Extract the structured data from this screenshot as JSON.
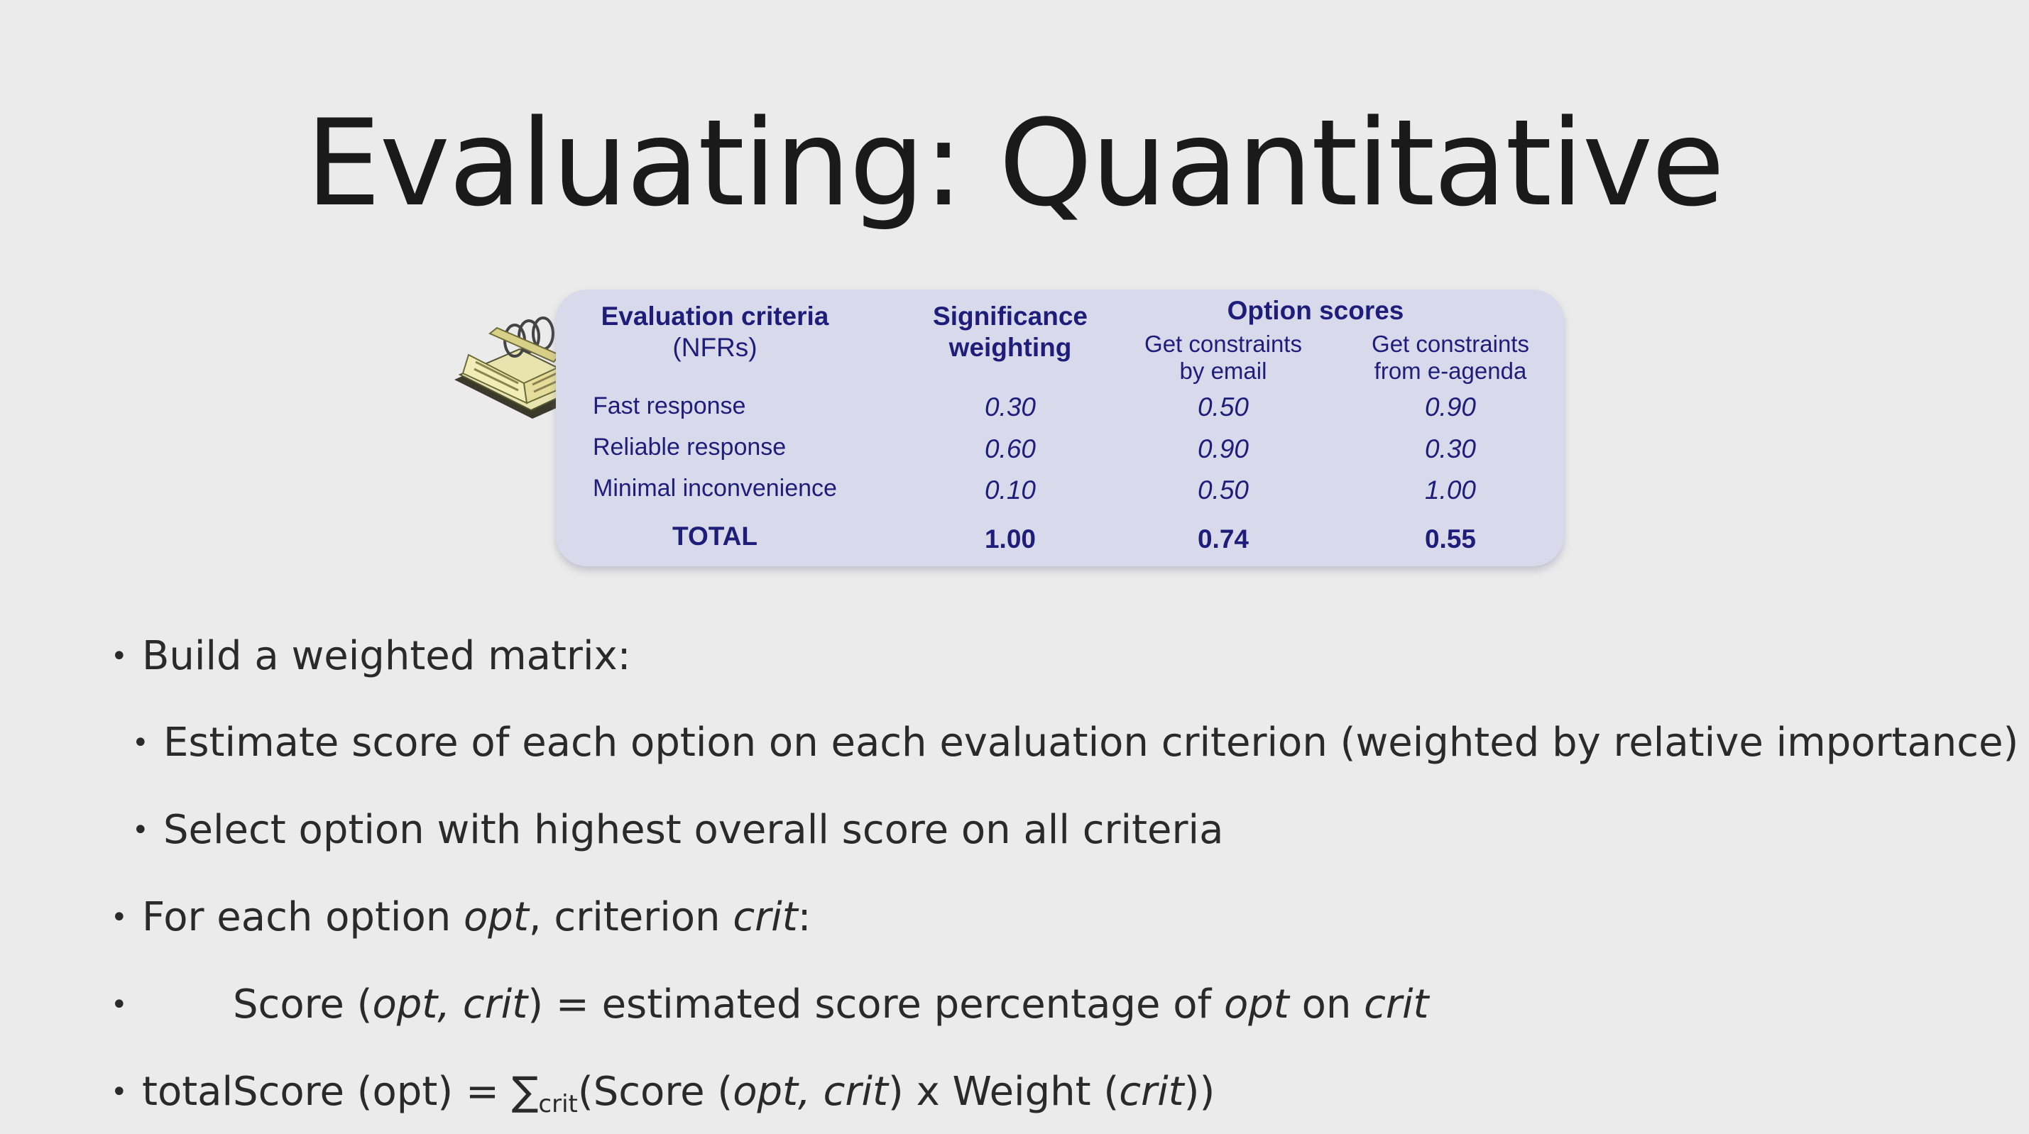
{
  "slide": {
    "title": "Evaluating: Quantitative"
  },
  "matrix": {
    "criteria_header_line1": "Evaluation criteria",
    "criteria_header_line2": "(NFRs)",
    "weight_header_line1": "Significance",
    "weight_header_line2": "weighting",
    "options_header": "Option scores",
    "option_a_line1": "Get constraints",
    "option_a_line2": "by email",
    "option_b_line1": "Get constraints",
    "option_b_line2": "from e-agenda",
    "rows": [
      {
        "criterion": "Fast response",
        "weight": "0.30",
        "score_a": "0.50",
        "score_b": "0.90"
      },
      {
        "criterion": "Reliable response",
        "weight": "0.60",
        "score_a": "0.90",
        "score_b": "0.30"
      },
      {
        "criterion": "Minimal inconvenience",
        "weight": "0.10",
        "score_a": "0.50",
        "score_b": "1.00"
      }
    ],
    "total": {
      "label": "TOTAL",
      "weight": "1.00",
      "score_a": "0.74",
      "score_b": "0.55"
    }
  },
  "bullets": {
    "b1": "Build a weighted matrix:",
    "b2": "Estimate score of each option on each evaluation criterion (weighted by relative importance)",
    "b3": "Select option with highest overall score on all criteria",
    "b4_pre": "For each option ",
    "b4_opt": "opt",
    "b4_mid": ", criterion ",
    "b4_crit": "crit",
    "b4_post": ":",
    "b5_pre": "Score (",
    "b5_args": "opt, crit",
    "b5_mid": ") =  estimated score percentage of ",
    "b5_opt": "opt",
    "b5_on": " on ",
    "b5_crit": "crit",
    "b6_pre": "totalScore (opt) =  ",
    "b6_sigma": "∑",
    "b6_sub": "crit",
    "b6_open": "(Score (",
    "b6_args": "opt, crit",
    "b6_mid": ") x  Weight (",
    "b6_crit": "crit",
    "b6_close": "))",
    "marker": "•"
  }
}
